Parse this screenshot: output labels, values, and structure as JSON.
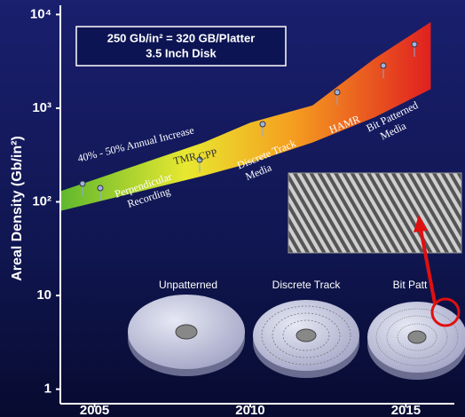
{
  "chart_data": {
    "type": "band",
    "title_box": [
      "250 Gb/in² = 320 GB/Platter",
      "3.5 Inch Disk"
    ],
    "y_label": "Areal Density (Gb/in²)",
    "x": [
      2003.9,
      2008.5,
      2010,
      2012,
      2014,
      2015.8
    ],
    "upper": [
      130,
      430,
      700,
      1070,
      3400,
      8300
    ],
    "lower": [
      80,
      190,
      260,
      430,
      800,
      1600
    ],
    "colors": [
      "#5fb82e",
      "#e8e830",
      "#f5a020",
      "#e02020"
    ],
    "log_y": true,
    "xlim": [
      2003.9,
      2016.5
    ],
    "ylim": [
      0.7,
      12000
    ],
    "xticks": [
      2005,
      2010,
      2015
    ],
    "yticks": [
      {
        "value": 10000,
        "label": "10⁴"
      },
      {
        "value": 1000,
        "label": "10³"
      },
      {
        "value": 100,
        "label": "10²"
      },
      10,
      1
    ],
    "annotations": {
      "growth": "40% - 50% Annual Increase",
      "tmr": "TMR",
      "cpp": "CPP",
      "perpendicular": [
        "Perpendicular",
        "Recording"
      ],
      "discrete": [
        "Discrete Track",
        "Media"
      ],
      "hamr": "HAMR",
      "bpm": [
        "Bit Patterned",
        "Media"
      ]
    },
    "disks": [
      "Unpatterned",
      "Discrete Track",
      "Bit Patt"
    ]
  }
}
